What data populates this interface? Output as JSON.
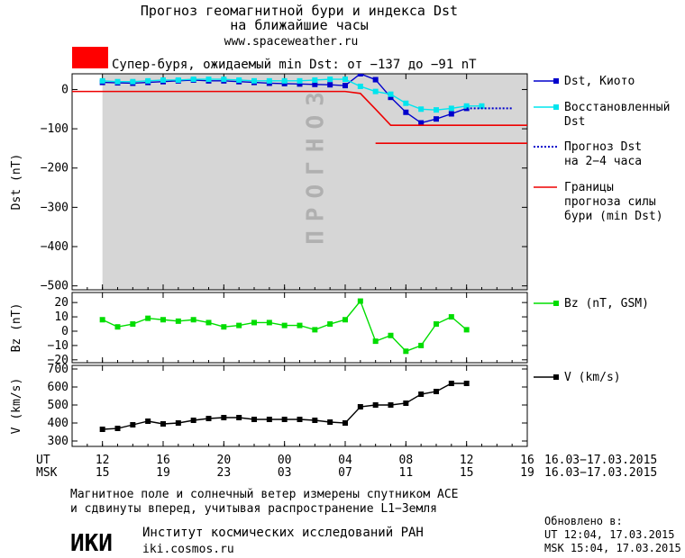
{
  "header": {
    "title_line1": "Прогноз геомагнитной бури и индекса Dst",
    "title_line2": "на ближайшие часы",
    "site": "www.spaceweather.ru"
  },
  "alert": {
    "color": "#ff0000",
    "text": "Супер-буря, ожидаемый min Dst: от −137 до −91 nT"
  },
  "colors": {
    "dst_kyoto": "#0000cc",
    "dst_restored": "#00e5ee",
    "dst_forecast": "#0000cc",
    "storm_bounds": "#ee0000",
    "bz": "#00dd00",
    "v": "#000000",
    "forecast_zone": "#d6d6d6",
    "forecast_zone_text": "#b0b0b0"
  },
  "footer": {
    "note_line1": "Магнитное поле и солнечный ветер измерены спутником ACE",
    "note_line2": "и сдвинуты вперед, учитывая распространение L1−Земля",
    "logo_text": "ИКИ",
    "institute": "Институт космических исследований РАН",
    "institute_site": "iki.cosmos.ru",
    "updated_label": "Обновлено в:",
    "updated_ut": "UT  12:04, 17.03.2015",
    "updated_msk": "MSK 15:04, 17.03.2015"
  },
  "chart_data": [
    {
      "type": "line",
      "panel": "dst",
      "ylabel": "Dst (nT)",
      "ylim": [
        -510,
        40
      ],
      "yticks": [
        0,
        -100,
        -200,
        -300,
        -400,
        -500
      ],
      "xlim": [
        12,
        40
      ],
      "forecast_zone": {
        "x_start": 12,
        "x_end": 40,
        "label": "ПРОГНОЗ"
      },
      "series": [
        {
          "name": "Dst, Киото",
          "style": "line-square",
          "x": [
            12,
            13,
            14,
            15,
            16,
            17,
            18,
            19,
            20,
            21,
            22,
            23,
            24,
            25,
            26,
            27,
            28,
            29,
            30,
            31,
            32,
            33,
            34,
            35,
            36
          ],
          "y": [
            18,
            17,
            16,
            18,
            20,
            22,
            24,
            22,
            22,
            20,
            18,
            16,
            15,
            14,
            13,
            12,
            10,
            40,
            25,
            -20,
            -58,
            -85,
            -75,
            -62,
            -48
          ]
        },
        {
          "name": "Восстановленный Dst",
          "style": "line-square",
          "x": [
            12,
            13,
            14,
            15,
            16,
            17,
            18,
            19,
            20,
            21,
            22,
            23,
            24,
            25,
            26,
            27,
            28,
            29,
            30,
            31,
            32,
            33,
            34,
            35,
            36,
            37
          ],
          "y": [
            22,
            20,
            20,
            22,
            24,
            24,
            26,
            26,
            26,
            24,
            22,
            22,
            22,
            22,
            24,
            26,
            26,
            8,
            -5,
            -12,
            -35,
            -50,
            -52,
            -48,
            -42,
            -42
          ]
        },
        {
          "name": "Прогноз Dst на 2−4 часа",
          "style": "dotted",
          "x": [
            36,
            37,
            38,
            39
          ],
          "y": [
            -48,
            -48,
            -48,
            -48
          ]
        },
        {
          "name": "Границы прогноза силы бури (min Dst)",
          "style": "line",
          "segments": [
            {
              "x": [
                10,
                28,
                29,
                30,
                31,
                40
              ],
              "y": [
                -5,
                -5,
                -10,
                -50,
                -91,
                -91
              ]
            },
            {
              "x": [
                30,
                40
              ],
              "y": [
                -137,
                -137
              ]
            }
          ]
        }
      ]
    },
    {
      "type": "line",
      "panel": "bz",
      "ylabel": "Bz (nT)",
      "ylim": [
        -22,
        27
      ],
      "yticks": [
        20,
        10,
        0,
        -10,
        -20
      ],
      "xlim": [
        12,
        40
      ],
      "series": [
        {
          "name": "Bz (nT, GSM)",
          "style": "line-square",
          "x": [
            12,
            13,
            14,
            15,
            16,
            17,
            18,
            19,
            20,
            21,
            22,
            23,
            24,
            25,
            26,
            27,
            28,
            29,
            30,
            31,
            32,
            33,
            34,
            35,
            36
          ],
          "y": [
            8,
            3,
            5,
            9,
            8,
            7,
            8,
            6,
            3,
            4,
            6,
            6,
            4,
            4,
            1,
            5,
            8,
            21,
            -7,
            -3,
            -14,
            -10,
            5,
            10,
            1
          ]
        }
      ]
    },
    {
      "type": "line",
      "panel": "v",
      "ylabel": "V (km/s)",
      "ylim": [
        270,
        720
      ],
      "yticks": [
        700,
        600,
        500,
        400,
        300
      ],
      "xlim": [
        12,
        40
      ],
      "series": [
        {
          "name": "V (km/s)",
          "style": "line-square",
          "x": [
            12,
            13,
            14,
            15,
            16,
            17,
            18,
            19,
            20,
            21,
            22,
            23,
            24,
            25,
            26,
            27,
            28,
            29,
            30,
            31,
            32,
            33,
            34,
            35,
            36
          ],
          "y": [
            365,
            370,
            390,
            410,
            395,
            400,
            415,
            425,
            430,
            430,
            420,
            420,
            420,
            420,
            415,
            405,
            400,
            490,
            500,
            500,
            510,
            560,
            575,
            620,
            620
          ]
        }
      ]
    }
  ],
  "xaxis": {
    "ut_label": "UT",
    "msk_label": "MSK",
    "ut_ticks": [
      "12",
      "16",
      "20",
      "00",
      "04",
      "08",
      "12",
      "16"
    ],
    "msk_ticks": [
      "15",
      "19",
      "23",
      "03",
      "07",
      "11",
      "15",
      "19"
    ],
    "tick_positions": [
      12,
      16,
      20,
      24,
      28,
      32,
      36,
      40
    ],
    "ut_range": "16.03−17.03.2015",
    "msk_range": "16.03−17.03.2015"
  }
}
